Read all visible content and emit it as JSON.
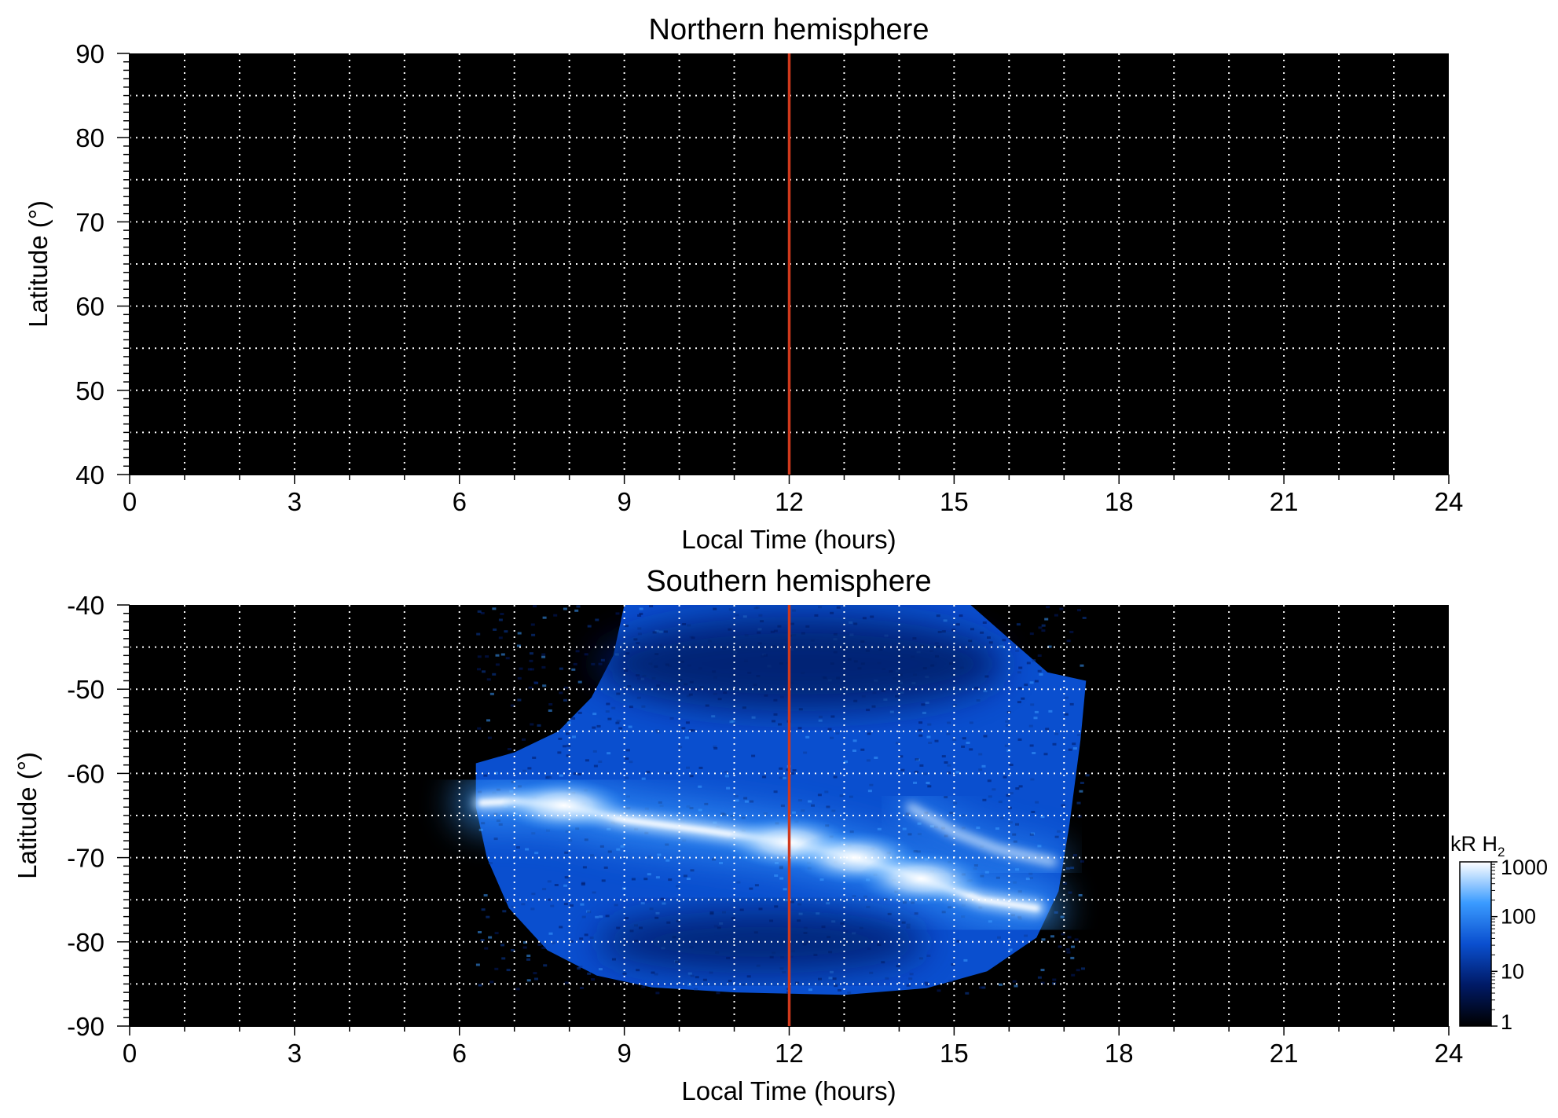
{
  "chart_data": [
    {
      "type": "heatmap",
      "title": "Northern hemisphere",
      "xlabel": "Local Time (hours)",
      "ylabel": "Latitude (°)",
      "xlim": [
        0,
        24
      ],
      "ylim": [
        40,
        90
      ],
      "x_ticks": [
        "0",
        "3",
        "6",
        "9",
        "12",
        "15",
        "18",
        "21",
        "24"
      ],
      "y_ticks": [
        "90",
        "80",
        "70",
        "60",
        "50",
        "40"
      ],
      "grid": true,
      "grid_style": "dotted",
      "x_grid_step": 1,
      "y_grid_step": 5,
      "reference_line": {
        "x": 12,
        "color": "#d0391c"
      },
      "emission": "none"
    },
    {
      "type": "heatmap",
      "title": "Southern hemisphere",
      "xlabel": "Local Time (hours)",
      "ylabel": "Latitude (°)",
      "xlim": [
        0,
        24
      ],
      "ylim": [
        -90,
        -40
      ],
      "x_ticks": [
        "0",
        "3",
        "6",
        "9",
        "12",
        "15",
        "18",
        "21",
        "24"
      ],
      "y_ticks": [
        "-40",
        "-50",
        "-60",
        "-70",
        "-80",
        "-90"
      ],
      "grid": true,
      "grid_style": "dotted",
      "x_grid_step": 1,
      "y_grid_step": 5,
      "reference_line": {
        "x": 12,
        "color": "#d0391c"
      },
      "coverage_boundary": [
        {
          "lt": 6.3,
          "lat": -58.8
        },
        {
          "lt": 7.0,
          "lat": -57.5
        },
        {
          "lt": 7.8,
          "lat": -55.0
        },
        {
          "lt": 8.4,
          "lat": -51.0
        },
        {
          "lt": 8.8,
          "lat": -46.0
        },
        {
          "lt": 9.0,
          "lat": -40.0
        },
        {
          "lt": 15.3,
          "lat": -40.0
        },
        {
          "lt": 16.0,
          "lat": -44.0
        },
        {
          "lt": 16.7,
          "lat": -48.0
        },
        {
          "lt": 17.4,
          "lat": -49.0
        },
        {
          "lt": 17.3,
          "lat": -56.0
        },
        {
          "lt": 17.1,
          "lat": -66.0
        },
        {
          "lt": 16.9,
          "lat": -74.0
        },
        {
          "lt": 16.5,
          "lat": -79.5
        },
        {
          "lt": 15.6,
          "lat": -83.5
        },
        {
          "lt": 14.5,
          "lat": -85.5
        },
        {
          "lt": 13.0,
          "lat": -86.3
        },
        {
          "lt": 11.0,
          "lat": -86.0
        },
        {
          "lt": 9.5,
          "lat": -85.4
        },
        {
          "lt": 8.5,
          "lat": -84.0
        },
        {
          "lt": 7.6,
          "lat": -81.0
        },
        {
          "lt": 6.9,
          "lat": -76.0
        },
        {
          "lt": 6.5,
          "lat": -70.0
        },
        {
          "lt": 6.3,
          "lat": -64.0
        }
      ],
      "auroral_oval": [
        {
          "lt": 6.4,
          "lat": -63.5,
          "kR": 200
        },
        {
          "lt": 7.0,
          "lat": -63.3,
          "kR": 500
        },
        {
          "lt": 7.9,
          "lat": -63.8,
          "kR": 1000
        },
        {
          "lt": 9.0,
          "lat": -65.5,
          "kR": 600
        },
        {
          "lt": 10.5,
          "lat": -66.8,
          "kR": 700
        },
        {
          "lt": 12.0,
          "lat": -68.2,
          "kR": 900
        },
        {
          "lt": 13.2,
          "lat": -70.0,
          "kR": 1000
        },
        {
          "lt": 14.4,
          "lat": -72.5,
          "kR": 1000
        },
        {
          "lt": 15.5,
          "lat": -75.0,
          "kR": 600
        },
        {
          "lt": 16.5,
          "lat": -76.0,
          "kR": 300
        }
      ],
      "secondary_arc": [
        {
          "lt": 14.2,
          "lat": -64.0,
          "kR": 800
        },
        {
          "lt": 15.0,
          "lat": -67.0,
          "kR": 1000
        },
        {
          "lt": 15.8,
          "lat": -69.0,
          "kR": 800
        },
        {
          "lt": 16.8,
          "lat": -70.5,
          "kR": 400
        }
      ],
      "colorbar": {
        "label": "kR H",
        "label_subscript": "2",
        "scale": "log",
        "range": [
          1,
          1000
        ],
        "ticks": [
          "1000",
          "100",
          "10",
          "1"
        ],
        "colors": [
          "#000000",
          "#001a66",
          "#0a4fcf",
          "#3a9bff",
          "#ffffff"
        ]
      }
    }
  ]
}
